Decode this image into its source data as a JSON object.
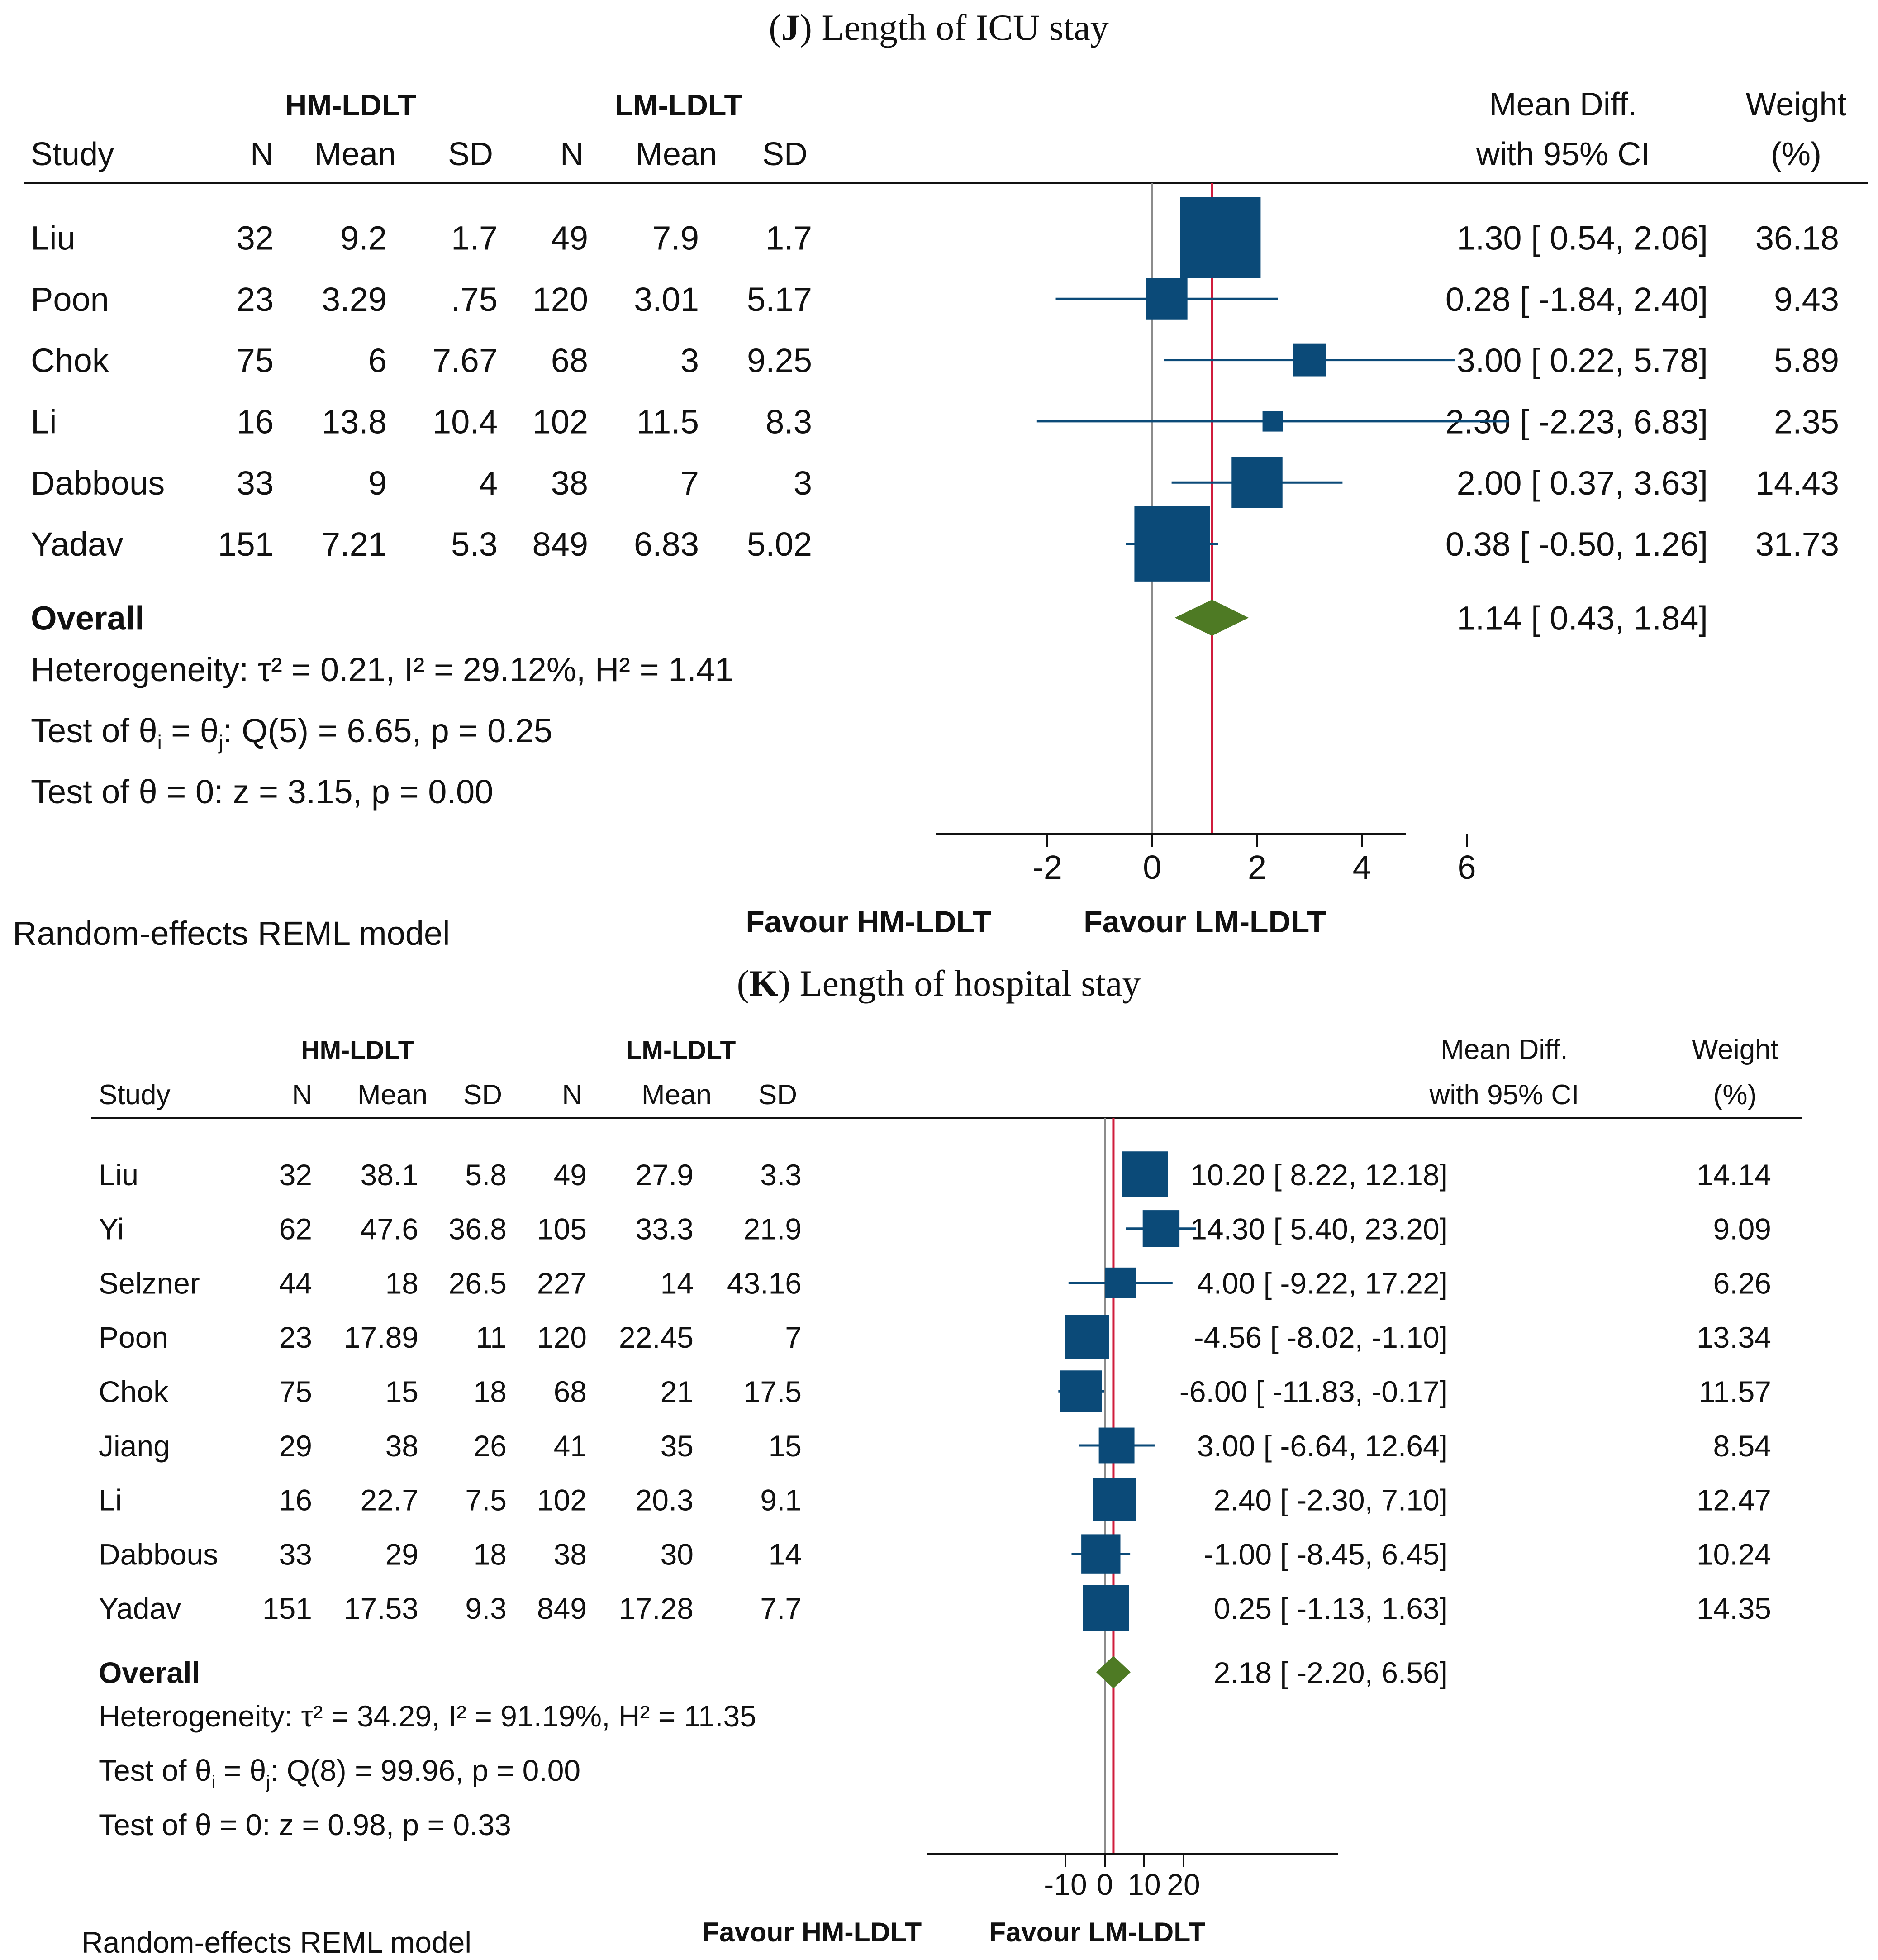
{
  "panels": [
    {
      "caption_prefix": "(",
      "caption_letter": "J",
      "caption_suffix": ") Length of ICU stay",
      "header": {
        "group1": "HM-LDLT",
        "group2": "LM-LDLT",
        "study": "Study",
        "n": "N",
        "mean": "Mean",
        "sd": "SD",
        "md_line1": "Mean Diff.",
        "md_line2": "with 95% CI",
        "weight_line1": "Weight",
        "weight_line2": "(%)"
      },
      "overall_label": "Overall",
      "overall_ci_text": "1.14 [  0.43,  1.84]",
      "heterogeneity": "Heterogeneity: τ² = 0.21, I² = 29.12%, H² = 1.41",
      "test_theta_eq_prefix": "Test of θ",
      "test_theta_eq_sub_i": "i",
      "test_theta_eq_mid": " = θ",
      "test_theta_eq_sub_j": "j",
      "test_theta_eq_suffix": ": Q(5) = 6.65, p = 0.25",
      "test_theta_zero": "Test of θ = 0: z = 3.15, p = 0.00",
      "favour_left": "Favour HM-LDLT",
      "favour_right": "Favour LM-LDLT",
      "model_note": "Random-effects REML model",
      "tick_labels": [
        "-2",
        "0",
        "2",
        "4",
        "6"
      ]
    },
    {
      "caption_prefix": "(",
      "caption_letter": "K",
      "caption_suffix": ") Length of hospital stay",
      "header": {
        "group1": "HM-LDLT",
        "group2": "LM-LDLT",
        "study": "Study",
        "n": "N",
        "mean": "Mean",
        "sd": "SD",
        "md_line1": "Mean Diff.",
        "md_line2": "with 95% CI",
        "weight_line1": "Weight",
        "weight_line2": "(%)"
      },
      "overall_label": "Overall",
      "overall_ci_text": "2.18 [  -2.20,    6.56]",
      "heterogeneity": "Heterogeneity: τ² = 34.29, I² = 91.19%, H² = 11.35",
      "test_theta_eq_prefix": "Test of θ",
      "test_theta_eq_sub_i": "i",
      "test_theta_eq_mid": " = θ",
      "test_theta_eq_sub_j": "j",
      "test_theta_eq_suffix": ": Q(8) = 99.96, p = 0.00",
      "test_theta_zero": "Test of θ = 0: z = 0.98, p = 0.33",
      "favour_left": "Favour HM-LDLT",
      "favour_right": "Favour LM-LDLT",
      "model_note": "Random-effects REML model",
      "tick_labels": [
        "-10",
        "0",
        "10",
        "20"
      ]
    }
  ],
  "chart_data": [
    {
      "type": "forest",
      "title": "(J) Length of ICU stay",
      "xlabel": "",
      "xlim": [
        -2.2,
        6.8
      ],
      "xticks": [
        -2,
        0,
        2,
        4,
        6
      ],
      "null_line": 0,
      "overall_line": 1.14,
      "studies": [
        {
          "study": "Liu",
          "n1": "32",
          "mean1": "9.2",
          "sd1": "1.7",
          "n2": "49",
          "mean2": "7.9",
          "sd2": "1.7",
          "md": 1.3,
          "lo": 0.54,
          "hi": 2.06,
          "ci_text": "1.30 [  0.54,  2.06]",
          "weight": 36.18,
          "weight_text": "36.18"
        },
        {
          "study": "Poon",
          "n1": "23",
          "mean1": "3.29",
          "sd1": ".75",
          "n2": "120",
          "mean2": "3.01",
          "sd2": "5.17",
          "md": 0.28,
          "lo": -1.84,
          "hi": 2.4,
          "ci_text": "0.28 [ -1.84,  2.40]",
          "weight": 9.43,
          "weight_text": "9.43"
        },
        {
          "study": "Chok",
          "n1": "75",
          "mean1": "6",
          "sd1": "7.67",
          "n2": "68",
          "mean2": "3",
          "sd2": "9.25",
          "md": 3.0,
          "lo": 0.22,
          "hi": 5.78,
          "ci_text": "3.00 [  0.22,  5.78]",
          "weight": 5.89,
          "weight_text": "5.89"
        },
        {
          "study": "Li",
          "n1": "16",
          "mean1": "13.8",
          "sd1": "10.4",
          "n2": "102",
          "mean2": "11.5",
          "sd2": "8.3",
          "md": 2.3,
          "lo": -2.23,
          "hi": 6.83,
          "ci_text": "2.30 [ -2.23,  6.83]",
          "weight": 2.35,
          "weight_text": "2.35"
        },
        {
          "study": "Dabbous",
          "n1": "33",
          "mean1": "9",
          "sd1": "4",
          "n2": "38",
          "mean2": "7",
          "sd2": "3",
          "md": 2.0,
          "lo": 0.37,
          "hi": 3.63,
          "ci_text": "2.00 [  0.37,  3.63]",
          "weight": 14.43,
          "weight_text": "14.43"
        },
        {
          "study": "Yadav",
          "n1": "151",
          "mean1": "7.21",
          "sd1": "5.3",
          "n2": "849",
          "mean2": "6.83",
          "sd2": "5.02",
          "md": 0.38,
          "lo": -0.5,
          "hi": 1.26,
          "ci_text": "0.38 [ -0.50,  1.26]",
          "weight": 31.73,
          "weight_text": "31.73"
        }
      ],
      "overall": {
        "md": 1.14,
        "lo": 0.43,
        "hi": 1.84
      }
    },
    {
      "type": "forest",
      "title": "(K) Length of hospital stay",
      "xlabel": "",
      "xlim": [
        -11.8,
        23.2
      ],
      "xticks": [
        -10,
        0,
        10,
        20
      ],
      "null_line": 0,
      "overall_line": 2.18,
      "studies": [
        {
          "study": "Liu",
          "n1": "32",
          "mean1": "38.1",
          "sd1": "5.8",
          "n2": "49",
          "mean2": "27.9",
          "sd2": "3.3",
          "md": 10.2,
          "lo": 8.22,
          "hi": 12.18,
          "ci_text": "10.20 [    8.22,  12.18]",
          "weight": 14.14,
          "weight_text": "14.14"
        },
        {
          "study": "Yi",
          "n1": "62",
          "mean1": "47.6",
          "sd1": "36.8",
          "n2": "105",
          "mean2": "33.3",
          "sd2": "21.9",
          "md": 14.3,
          "lo": 5.4,
          "hi": 23.2,
          "ci_text": "14.30 [    5.40,  23.20]",
          "weight": 9.09,
          "weight_text": "9.09"
        },
        {
          "study": "Selzner",
          "n1": "44",
          "mean1": "18",
          "sd1": "26.5",
          "n2": "227",
          "mean2": "14",
          "sd2": "43.16",
          "md": 4.0,
          "lo": -9.22,
          "hi": 17.22,
          "ci_text": "4.00 [  -9.22,  17.22]",
          "weight": 6.26,
          "weight_text": "6.26"
        },
        {
          "study": "Poon",
          "n1": "23",
          "mean1": "17.89",
          "sd1": "11",
          "n2": "120",
          "mean2": "22.45",
          "sd2": "7",
          "md": -4.56,
          "lo": -8.02,
          "hi": -1.1,
          "ci_text": "-4.56 [  -8.02,   -1.10]",
          "weight": 13.34,
          "weight_text": "13.34"
        },
        {
          "study": "Chok",
          "n1": "75",
          "mean1": "15",
          "sd1": "18",
          "n2": "68",
          "mean2": "21",
          "sd2": "17.5",
          "md": -6.0,
          "lo": -11.83,
          "hi": -0.17,
          "ci_text": "-6.00 [ -11.83,   -0.17]",
          "weight": 11.57,
          "weight_text": "11.57"
        },
        {
          "study": "Jiang",
          "n1": "29",
          "mean1": "38",
          "sd1": "26",
          "n2": "41",
          "mean2": "35",
          "sd2": "15",
          "md": 3.0,
          "lo": -6.64,
          "hi": 12.64,
          "ci_text": "3.00 [  -6.64,  12.64]",
          "weight": 8.54,
          "weight_text": "8.54"
        },
        {
          "study": "Li",
          "n1": "16",
          "mean1": "22.7",
          "sd1": "7.5",
          "n2": "102",
          "mean2": "20.3",
          "sd2": "9.1",
          "md": 2.4,
          "lo": -2.3,
          "hi": 7.1,
          "ci_text": "2.40 [  -2.30,    7.10]",
          "weight": 12.47,
          "weight_text": "12.47"
        },
        {
          "study": "Dabbous",
          "n1": "33",
          "mean1": "29",
          "sd1": "18",
          "n2": "38",
          "mean2": "30",
          "sd2": "14",
          "md": -1.0,
          "lo": -8.45,
          "hi": 6.45,
          "ci_text": "-1.00 [  -8.45,    6.45]",
          "weight": 10.24,
          "weight_text": "10.24"
        },
        {
          "study": "Yadav",
          "n1": "151",
          "mean1": "17.53",
          "sd1": "9.3",
          "n2": "849",
          "mean2": "17.28",
          "sd2": "7.7",
          "md": 0.25,
          "lo": -1.13,
          "hi": 1.63,
          "ci_text": "0.25 [  -1.13,    1.63]",
          "weight": 14.35,
          "weight_text": "14.35"
        }
      ],
      "overall": {
        "md": 2.18,
        "lo": -2.2,
        "hi": 6.56
      }
    }
  ],
  "colors": {
    "marker": "#0b4a78",
    "overall_diamond": "#4e7a24",
    "overall_line": "#d01c3c",
    "null_line": "#8c8c8c",
    "axis": "#111111",
    "text": "#111111"
  }
}
